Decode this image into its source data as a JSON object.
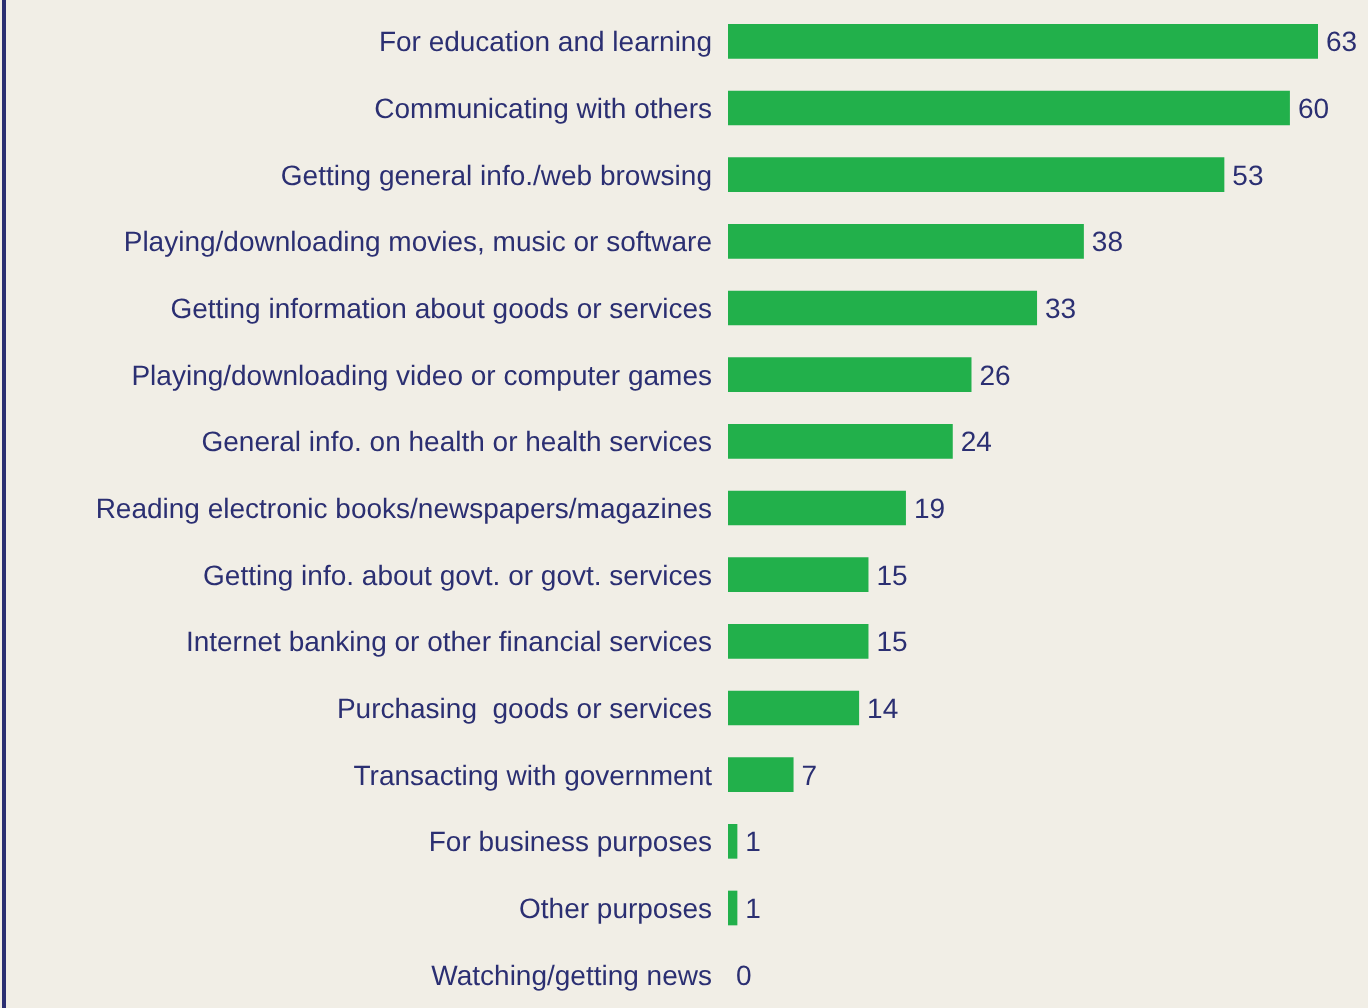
{
  "chart_data": {
    "type": "bar",
    "orientation": "horizontal",
    "data_labels": true,
    "tick_labels": "y",
    "categories": [
      "For education and learning",
      "Communicating with others",
      "Getting general info./web browsing",
      "Playing/downloading movies, music or software",
      "Getting information about goods or services",
      "Playing/downloading video or computer games",
      "General info. on health or health services",
      "Reading electronic books/newspapers/magazines",
      "Getting info. about govt. or govt. services",
      "Internet banking or other financial services",
      "Purchasing  goods or services",
      "Transacting with government",
      "For business purposes",
      "Other purposes",
      "Watching/getting news"
    ],
    "series": [
      {
        "color": "#22b04b",
        "values": [
          63,
          60,
          53,
          38,
          33,
          26,
          24,
          19,
          15,
          15,
          14,
          7,
          1,
          1,
          0
        ]
      }
    ]
  }
}
